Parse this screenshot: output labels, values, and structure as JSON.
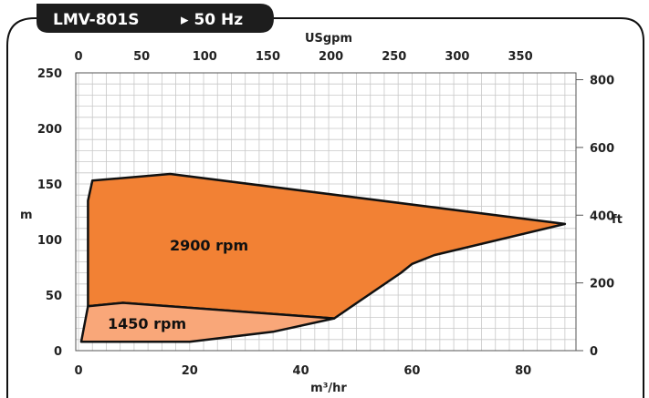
{
  "header": {
    "model": "LMV-801S",
    "frequency": "▸ 50 Hz"
  },
  "chart_data": {
    "type": "area",
    "title": "LMV-801S ▸ 50 Hz",
    "x_bottom": {
      "label": "m³/hr",
      "ticks": [
        0,
        20,
        40,
        60,
        80
      ],
      "range": [
        0,
        90
      ]
    },
    "x_top": {
      "label": "USgpm",
      "ticks": [
        0,
        50,
        100,
        150,
        200,
        250,
        300,
        350
      ]
    },
    "y_left": {
      "label": "m",
      "ticks": [
        0,
        50,
        100,
        150,
        200,
        250
      ],
      "range": [
        0,
        250
      ]
    },
    "y_right": {
      "label": "ft",
      "ticks": [
        0,
        200,
        400,
        600,
        800
      ]
    },
    "grid": true,
    "series": [
      {
        "name": "2900 rpm",
        "color": "#f28134",
        "points": [
          [
            1.7,
            40
          ],
          [
            1.7,
            135
          ],
          [
            2.5,
            153
          ],
          [
            16.5,
            159
          ],
          [
            87.5,
            114
          ],
          [
            64,
            86
          ],
          [
            60,
            78
          ],
          [
            58,
            70
          ],
          [
            46,
            29
          ],
          [
            8,
            43
          ]
        ]
      },
      {
        "name": "1450 rpm",
        "color": "#f9a779",
        "points": [
          [
            0.5,
            8
          ],
          [
            1.7,
            40
          ],
          [
            8,
            43
          ],
          [
            46,
            29
          ],
          [
            35,
            17
          ],
          [
            20,
            8
          ]
        ]
      }
    ]
  }
}
